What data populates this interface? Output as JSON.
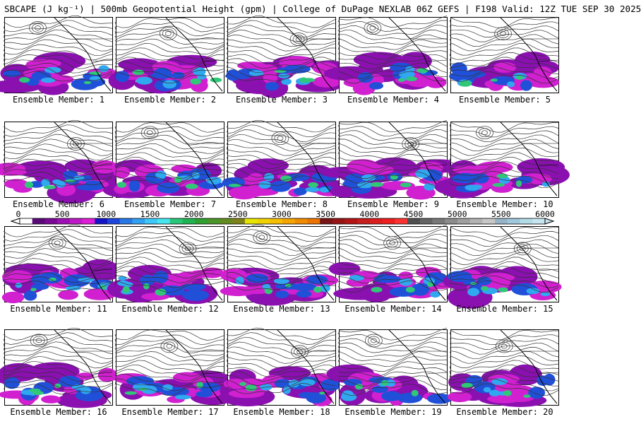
{
  "header": {
    "title": "SBCAPE (J kg⁻¹) | 500mb Geopotential Height (gpm) | College of DuPage NEXLAB 06Z GEFS | F198 Valid: 12Z TUE SEP 30 2025"
  },
  "member_prefix": "Ensemble Member: ",
  "members": [
    {
      "label": "Ensemble Member: 1"
    },
    {
      "label": "Ensemble Member: 2"
    },
    {
      "label": "Ensemble Member: 3"
    },
    {
      "label": "Ensemble Member: 4"
    },
    {
      "label": "Ensemble Member: 5"
    },
    {
      "label": "Ensemble Member: 6"
    },
    {
      "label": "Ensemble Member: 7"
    },
    {
      "label": "Ensemble Member: 8"
    },
    {
      "label": "Ensemble Member: 9"
    },
    {
      "label": "Ensemble Member: 10"
    },
    {
      "label": "Ensemble Member: 11"
    },
    {
      "label": "Ensemble Member: 12"
    },
    {
      "label": "Ensemble Member: 13"
    },
    {
      "label": "Ensemble Member: 14"
    },
    {
      "label": "Ensemble Member: 15"
    },
    {
      "label": "Ensemble Member: 16"
    },
    {
      "label": "Ensemble Member: 17"
    },
    {
      "label": "Ensemble Member: 18"
    },
    {
      "label": "Ensemble Member: 19"
    },
    {
      "label": "Ensemble Member: 20"
    }
  ],
  "colorbar": {
    "tick_labels": [
      "0",
      "500",
      "1000",
      "1500",
      "2000",
      "2500",
      "3000",
      "3500",
      "4000",
      "4500",
      "5000",
      "5500",
      "6000"
    ],
    "colors": [
      "#ffffff",
      "#5a0a78",
      "#7a0a96",
      "#9c10b4",
      "#be18c8",
      "#e01ed8",
      "#1414c8",
      "#1e46dc",
      "#2878e6",
      "#32a0f0",
      "#3cc8f8",
      "#46e6f0",
      "#28c878",
      "#20b450",
      "#30a030",
      "#4a9628",
      "#648c20",
      "#7e8218",
      "#e6e600",
      "#f0d200",
      "#f5be00",
      "#f5a500",
      "#f08c00",
      "#eb7300",
      "#781414",
      "#961414",
      "#b41414",
      "#c81e1e",
      "#dc1e1e",
      "#f01e1e",
      "#ff3232",
      "#505050",
      "#646464",
      "#787878",
      "#8c8c8c",
      "#a0a0a0",
      "#b4b4b4",
      "#c8c8c8",
      "#96b4c8",
      "#a0c8dc",
      "#b4dce6",
      "#c8e6f0"
    ]
  }
}
